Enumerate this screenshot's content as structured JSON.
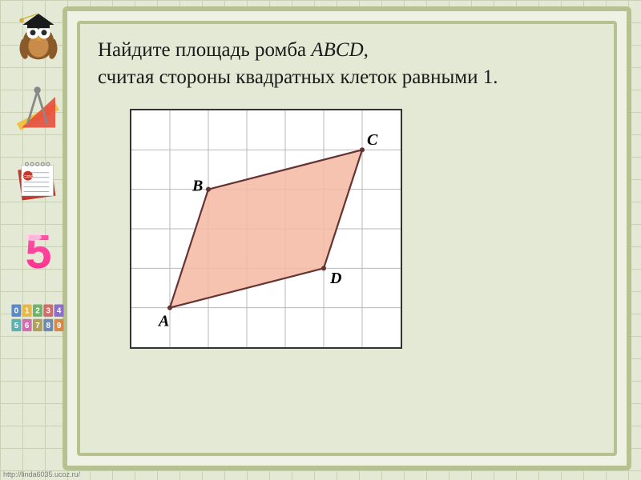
{
  "problem": {
    "line1_prefix": "Найдите площадь ромба ",
    "line1_var": "ABCD",
    "line1_suffix": ",",
    "line2": "считая стороны квадратных клеток равными 1."
  },
  "figure": {
    "type": "geometry-on-grid",
    "grid": {
      "cols": 7,
      "rows": 6,
      "cell": 48,
      "grid_color": "#b8b8b8",
      "border_color": "#333333"
    },
    "polygon_fill": "#f4b9a3",
    "polygon_fill_opacity": 0.85,
    "polygon_stroke": "#663333",
    "polygon_stroke_width": 2.2,
    "vertices": {
      "A": {
        "gx": 1,
        "gy": 5,
        "label_dx": -14,
        "label_dy": 22
      },
      "B": {
        "gx": 2,
        "gy": 2,
        "label_dx": -20,
        "label_dy": 2
      },
      "C": {
        "gx": 6,
        "gy": 1,
        "label_dx": 6,
        "label_dy": -6
      },
      "D": {
        "gx": 5,
        "gy": 4,
        "label_dx": 8,
        "label_dy": 18
      }
    },
    "label_font_size": 20,
    "label_font_style": "italic",
    "label_color": "#000000",
    "vertex_marker_radius": 3
  },
  "decorations": {
    "owl_colors": {
      "body": "#8a5a2a",
      "belly": "#c98b4a",
      "eye": "#ffffff",
      "pupil": "#2a2a2a",
      "beak": "#e0a030",
      "cap": "#1a1a1a",
      "tassel": "#d4af37"
    },
    "tools_colors": {
      "ruler": "#f0c040",
      "triangle": "#e84c3d",
      "compass": "#888888"
    },
    "notepad_colors": {
      "paper": "#ffffff",
      "line": "#9ab0d0",
      "board": "#c0392b",
      "ring": "#888888"
    },
    "five_colors": {
      "top": "#ff5bb0",
      "bottom": "#ff2a8a",
      "highlight": "#ffd0e6"
    },
    "blocks": {
      "cells": [
        "0",
        "1",
        "2",
        "3",
        "4",
        "5",
        "6",
        "7",
        "8",
        "9"
      ],
      "palette": [
        "#5b8ac9",
        "#e6b84c",
        "#6fb36f",
        "#d46a6a",
        "#8a6fc9",
        "#5bb0b0",
        "#cf6fb0",
        "#b0a060",
        "#6f8ab0",
        "#d48a4c"
      ],
      "text": "#ffffff"
    }
  },
  "footer_url": "http://linda6035.ucoz.ru/"
}
